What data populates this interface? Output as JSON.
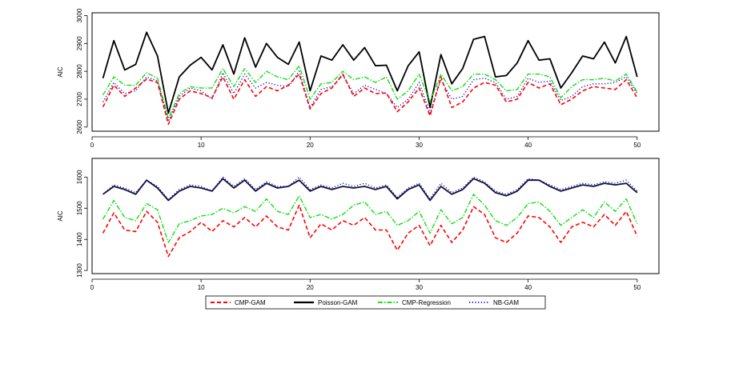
{
  "colors": {
    "CMP-GAM": "#ff0000",
    "Poisson-GAM": "#000000",
    "CMP-Regression": "#00dd00",
    "NB-GAM": "#0000cc",
    "Poisson-GAM-bottom": "#111133"
  },
  "chart_data": [
    {
      "type": "line",
      "title": "",
      "xlabel": "",
      "ylabel": "AIC",
      "xlim": [
        0,
        52
      ],
      "ylim": [
        2585,
        3010
      ],
      "xticks": [
        0,
        10,
        20,
        30,
        40,
        50
      ],
      "yticks": [
        2600,
        2700,
        2800,
        2900,
        3000
      ],
      "grid": false,
      "x": [
        1,
        2,
        3,
        4,
        5,
        6,
        7,
        8,
        9,
        10,
        11,
        12,
        13,
        14,
        15,
        16,
        17,
        18,
        19,
        20,
        21,
        22,
        23,
        24,
        25,
        26,
        27,
        28,
        29,
        30,
        31,
        32,
        33,
        34,
        35,
        36,
        37,
        38,
        39,
        40,
        41,
        42,
        43,
        44,
        45,
        46,
        47,
        48,
        49,
        50
      ],
      "series": [
        {
          "name": "CMP-GAM",
          "values": [
            2672,
            2750,
            2710,
            2740,
            2772,
            2760,
            2610,
            2700,
            2730,
            2720,
            2705,
            2780,
            2700,
            2770,
            2710,
            2745,
            2730,
            2750,
            2790,
            2665,
            2720,
            2740,
            2790,
            2710,
            2740,
            2720,
            2722,
            2655,
            2690,
            2740,
            2640,
            2780,
            2670,
            2690,
            2740,
            2760,
            2750,
            2690,
            2700,
            2760,
            2740,
            2755,
            2680,
            2700,
            2730,
            2745,
            2740,
            2735,
            2770,
            2705
          ]
        },
        {
          "name": "Poisson-GAM",
          "values": [
            2775,
            2910,
            2805,
            2825,
            2940,
            2855,
            2650,
            2780,
            2822,
            2850,
            2805,
            2895,
            2790,
            2920,
            2815,
            2900,
            2850,
            2825,
            2905,
            2730,
            2855,
            2840,
            2895,
            2840,
            2885,
            2820,
            2822,
            2730,
            2820,
            2870,
            2670,
            2860,
            2755,
            2810,
            2915,
            2925,
            2780,
            2785,
            2830,
            2910,
            2840,
            2845,
            2740,
            2795,
            2855,
            2845,
            2905,
            2830,
            2925,
            2780
          ]
        },
        {
          "name": "CMP-Regression",
          "values": [
            2715,
            2780,
            2750,
            2750,
            2795,
            2775,
            2630,
            2720,
            2745,
            2740,
            2740,
            2810,
            2745,
            2810,
            2760,
            2800,
            2780,
            2770,
            2820,
            2700,
            2755,
            2760,
            2800,
            2770,
            2780,
            2760,
            2780,
            2700,
            2730,
            2790,
            2690,
            2790,
            2730,
            2745,
            2790,
            2790,
            2770,
            2730,
            2735,
            2790,
            2790,
            2780,
            2705,
            2745,
            2770,
            2770,
            2775,
            2765,
            2790,
            2725
          ]
        },
        {
          "name": "NB-GAM",
          "values": [
            2690,
            2760,
            2720,
            2730,
            2780,
            2765,
            2620,
            2710,
            2740,
            2730,
            2700,
            2795,
            2720,
            2790,
            2740,
            2760,
            2750,
            2745,
            2800,
            2670,
            2735,
            2745,
            2785,
            2720,
            2750,
            2735,
            2720,
            2670,
            2700,
            2760,
            2650,
            2770,
            2700,
            2710,
            2770,
            2775,
            2760,
            2700,
            2710,
            2775,
            2760,
            2765,
            2695,
            2710,
            2745,
            2755,
            2755,
            2760,
            2780,
            2720
          ]
        }
      ]
    },
    {
      "type": "line",
      "title": "",
      "xlabel": "",
      "ylabel": "AIC",
      "xlim": [
        0,
        52
      ],
      "ylim": [
        1290,
        1660
      ],
      "xticks": [
        0,
        10,
        20,
        30,
        40,
        50
      ],
      "yticks": [
        1300,
        1400,
        1500,
        1600
      ],
      "grid": false,
      "x": [
        1,
        2,
        3,
        4,
        5,
        6,
        7,
        8,
        9,
        10,
        11,
        12,
        13,
        14,
        15,
        16,
        17,
        18,
        19,
        20,
        21,
        22,
        23,
        24,
        25,
        26,
        27,
        28,
        29,
        30,
        31,
        32,
        33,
        34,
        35,
        36,
        37,
        38,
        39,
        40,
        41,
        42,
        43,
        44,
        45,
        46,
        47,
        48,
        49,
        50
      ],
      "series": [
        {
          "name": "CMP-GAM",
          "values": [
            1420,
            1485,
            1430,
            1425,
            1490,
            1455,
            1345,
            1405,
            1425,
            1455,
            1425,
            1460,
            1440,
            1470,
            1440,
            1475,
            1440,
            1430,
            1510,
            1405,
            1450,
            1430,
            1460,
            1445,
            1470,
            1430,
            1430,
            1365,
            1420,
            1445,
            1380,
            1445,
            1390,
            1430,
            1505,
            1480,
            1405,
            1390,
            1420,
            1475,
            1470,
            1440,
            1390,
            1440,
            1455,
            1440,
            1480,
            1445,
            1490,
            1410
          ]
        },
        {
          "name": "Poisson-GAM",
          "values": [
            1545,
            1570,
            1560,
            1545,
            1590,
            1565,
            1525,
            1555,
            1570,
            1565,
            1555,
            1595,
            1565,
            1590,
            1555,
            1580,
            1565,
            1570,
            1590,
            1555,
            1570,
            1560,
            1570,
            1565,
            1570,
            1560,
            1570,
            1530,
            1560,
            1575,
            1525,
            1570,
            1545,
            1560,
            1595,
            1580,
            1550,
            1540,
            1555,
            1590,
            1590,
            1570,
            1555,
            1565,
            1575,
            1570,
            1580,
            1575,
            1580,
            1550
          ]
        },
        {
          "name": "CMP-Regression",
          "values": [
            1465,
            1525,
            1470,
            1460,
            1515,
            1495,
            1390,
            1450,
            1460,
            1475,
            1480,
            1500,
            1485,
            1505,
            1490,
            1530,
            1490,
            1480,
            1540,
            1470,
            1480,
            1465,
            1480,
            1510,
            1520,
            1480,
            1490,
            1445,
            1460,
            1490,
            1420,
            1495,
            1450,
            1470,
            1545,
            1510,
            1460,
            1445,
            1470,
            1515,
            1520,
            1490,
            1445,
            1470,
            1495,
            1470,
            1520,
            1490,
            1530,
            1450
          ]
        },
        {
          "name": "NB-GAM",
          "values": [
            1545,
            1575,
            1565,
            1550,
            1590,
            1570,
            1528,
            1560,
            1575,
            1570,
            1555,
            1600,
            1570,
            1595,
            1560,
            1585,
            1570,
            1570,
            1600,
            1560,
            1575,
            1565,
            1580,
            1570,
            1580,
            1565,
            1575,
            1535,
            1565,
            1580,
            1530,
            1580,
            1550,
            1565,
            1600,
            1585,
            1555,
            1545,
            1560,
            1595,
            1590,
            1575,
            1560,
            1570,
            1580,
            1575,
            1585,
            1580,
            1590,
            1555
          ]
        }
      ]
    }
  ],
  "legend": {
    "placement": "bottom-center",
    "items": [
      "CMP-GAM",
      "Poisson-GAM",
      "CMP-Regression",
      "NB-GAM"
    ]
  }
}
